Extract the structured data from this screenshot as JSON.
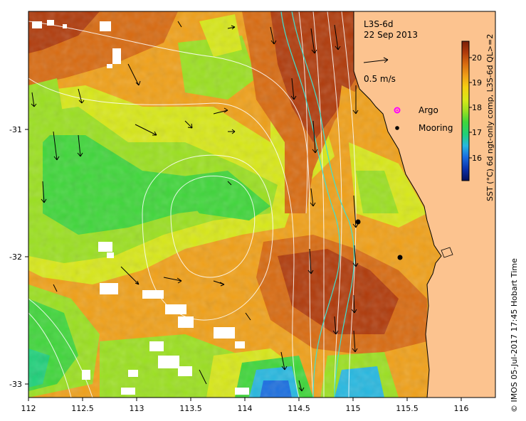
{
  "map": {
    "product": "L3S-6d",
    "date": "22 Sep 2013",
    "vector_scale_label": "0.5 m/s",
    "legend": {
      "argo_label": "Argo",
      "mooring_label": "Mooring",
      "argo_color": "#ff00ff",
      "mooring_color": "#000000"
    },
    "land_color": "#fcc38f",
    "moorings": [
      {
        "lon": 115.05,
        "lat": -31.73
      },
      {
        "lon": 115.42,
        "lat": -32.0
      }
    ]
  },
  "axes": {
    "x_ticks": [
      "112",
      "112.5",
      "113",
      "113.5",
      "114",
      "114.5",
      "115",
      "115.5",
      "116"
    ],
    "y_ticks": [
      "-31",
      "-32",
      "-33"
    ],
    "xlim": [
      112,
      116.3
    ],
    "ylim": [
      -33.1,
      -30.05
    ]
  },
  "colorbar": {
    "title": "SST (°C) 6d ngt-only comp, L3S-6d QL>=2",
    "ticks": [
      "20",
      "19",
      "18",
      "17",
      "16"
    ],
    "range": [
      15,
      20.5
    ],
    "colors": [
      "#08105a",
      "#0b2fa8",
      "#1a6ee0",
      "#27b8e0",
      "#1fd07a",
      "#3fd63a",
      "#9be020",
      "#d8e818",
      "#f5d010",
      "#f0a018",
      "#d86a10",
      "#b03a0a",
      "#7a1f08"
    ]
  },
  "credit": "© IMOS 05-Jul-2017 17:45 Hobart Time"
}
